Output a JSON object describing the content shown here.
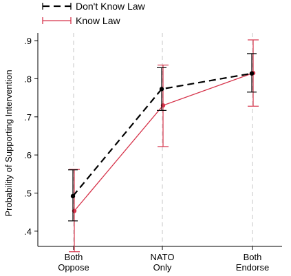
{
  "chart_data": {
    "type": "line",
    "title": "",
    "xlabel": "",
    "ylabel": "Probability of Supporting Intervention",
    "ylim": [
      0.36,
      0.92
    ],
    "yticks": [
      ".4",
      ".5",
      ".6",
      ".7",
      ".8",
      ".9"
    ],
    "ytick_values": [
      0.4,
      0.5,
      0.6,
      0.7,
      0.8,
      0.9
    ],
    "categories": [
      [
        "Both",
        "Oppose"
      ],
      [
        "NATO",
        "Only"
      ],
      [
        "Both",
        "Endorse"
      ]
    ],
    "legend_position": "top-left",
    "grid": "vertical dashed at categories",
    "series": [
      {
        "name": "Don't Know Law",
        "color": "#000000",
        "dash": "dashed",
        "values": [
          0.492,
          0.773,
          0.814
        ],
        "ci_low": [
          0.427,
          0.717,
          0.765
        ],
        "ci_high": [
          0.561,
          0.829,
          0.866
        ]
      },
      {
        "name": "Know Law",
        "color": "#d6334a",
        "dash": "solid",
        "values": [
          0.453,
          0.73,
          0.815
        ],
        "ci_low": [
          0.346,
          0.622,
          0.728
        ],
        "ci_high": [
          0.562,
          0.836,
          0.902
        ]
      }
    ]
  }
}
